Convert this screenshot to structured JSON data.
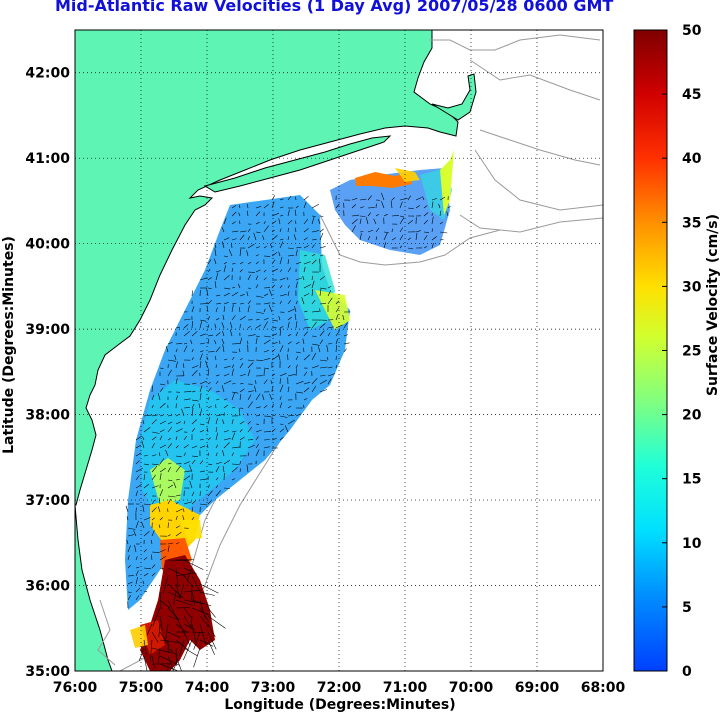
{
  "title": "Mid-Atlantic Raw Velocities (1 Day Avg) 2007/05/28 0600 GMT",
  "map": {
    "xlabel": "Longitude (Degrees:Minutes)",
    "ylabel": "Latitude (Degrees:Minutes)",
    "lon_range": [
      -76,
      -68
    ],
    "lat_range": [
      35,
      42.5
    ],
    "lon_ticks": [
      "76:00",
      "75:00",
      "74:00",
      "73:00",
      "72:00",
      "71:00",
      "70:00",
      "69:00",
      "68:00"
    ],
    "lat_ticks": [
      "35:00",
      "36:00",
      "37:00",
      "38:00",
      "39:00",
      "40:00",
      "41:00",
      "42:00"
    ],
    "grid": true,
    "land_color": "#5ef5b4",
    "coast_color": "#000000",
    "bathymetry_color": "#9a9a9a"
  },
  "colorbar": {
    "label": "Surface Velocity (cm/s)",
    "ticks": [
      "0",
      "5",
      "10",
      "15",
      "20",
      "25",
      "30",
      "35",
      "40",
      "45",
      "50"
    ],
    "range": [
      0,
      50
    ],
    "colormap": "jet"
  }
}
